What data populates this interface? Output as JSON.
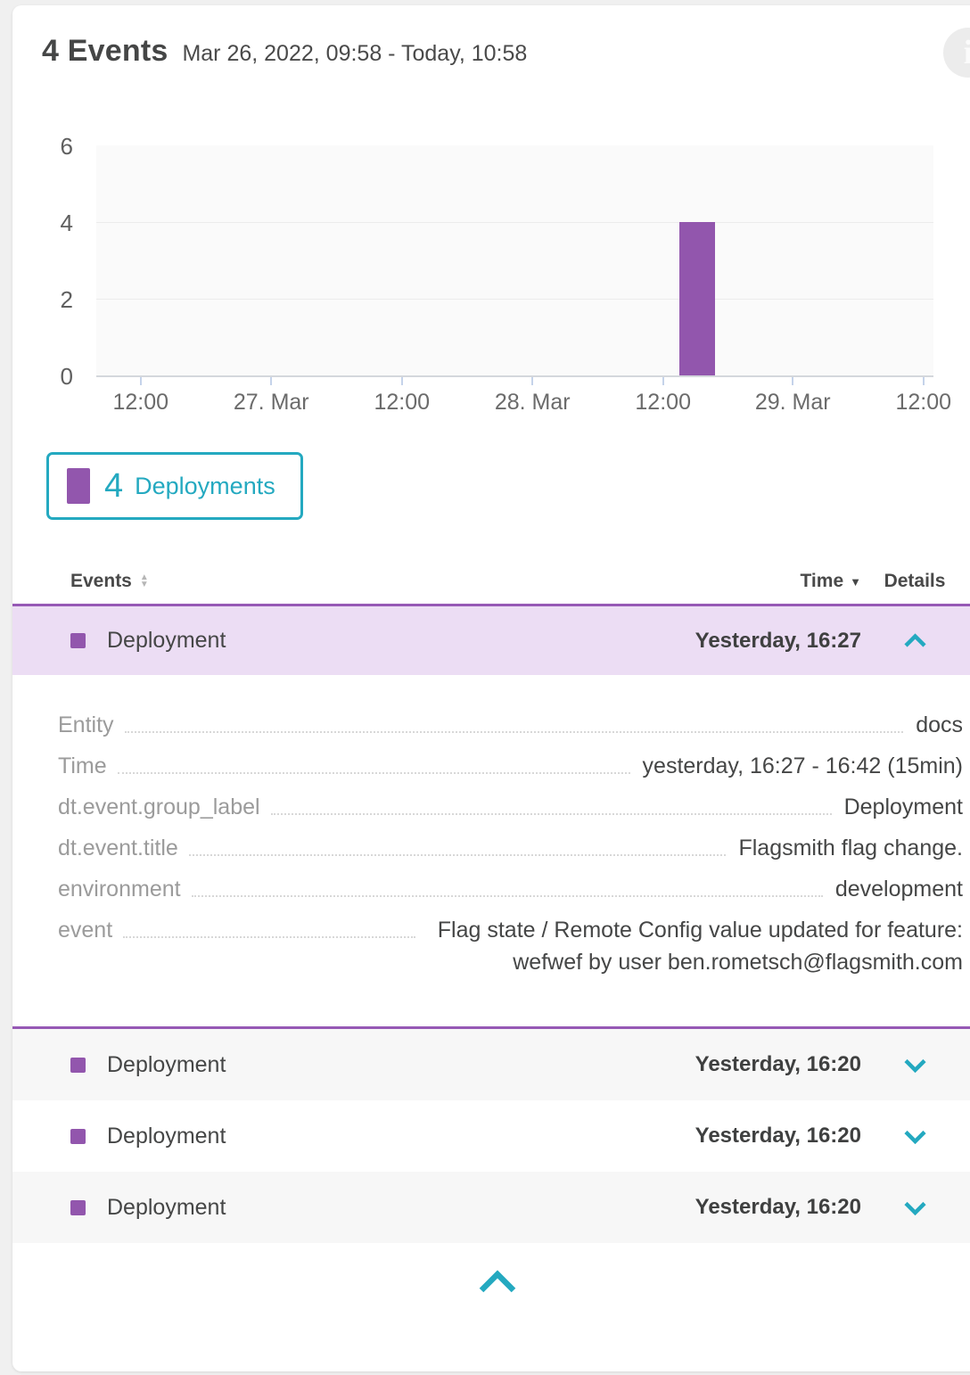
{
  "colors": {
    "accent_teal": "#24a9c0",
    "event_purple": "#9256ad",
    "expanded_row_bg": "#ecddf4",
    "alt_row_bg": "#f7f7f7",
    "page_bg": "#f0f0f0",
    "text_dark": "#454646",
    "label_gray": "#9b9b9b"
  },
  "header": {
    "title": "4 Events",
    "date_range": "Mar 26, 2022, 09:58 - Today, 10:58"
  },
  "icons": {
    "info_glyph": "i",
    "sort_up_glyph": "▲",
    "sort_down_glyph": "▼",
    "time_sort_glyph": "▼"
  },
  "chart_data": {
    "type": "bar",
    "title": "",
    "xlabel": "",
    "ylabel": "",
    "grid": true,
    "y_axis": {
      "range": [
        0,
        6
      ],
      "ticks": [
        6,
        4,
        2,
        0
      ],
      "tick_labels": [
        "6",
        "4",
        "2",
        "0"
      ]
    },
    "x_axis": {
      "tick_labels": [
        "12:00",
        "27. Mar",
        "12:00",
        "28. Mar",
        "12:00",
        "29. Mar",
        "12:00"
      ]
    },
    "series": [
      {
        "name": "Deployments",
        "color": "#9256ad",
        "data": [
          {
            "x_context": "28. Mar, shortly after 12:00 (between 12:00 and 29. Mar)",
            "x_frac": 0.696,
            "y": 4
          }
        ]
      }
    ],
    "legend": {
      "position": "below-left",
      "entries": [
        {
          "label": "Deployments",
          "count": 4,
          "color": "#9256ad"
        }
      ]
    }
  },
  "legend": {
    "count": "4",
    "label": "Deployments"
  },
  "table": {
    "headers": {
      "events": "Events",
      "time": "Time",
      "details": "Details"
    },
    "rows": [
      {
        "event": "Deployment",
        "time": "Yesterday, 16:27",
        "state": "expanded",
        "details": [
          {
            "label": "Entity",
            "value": "docs"
          },
          {
            "label": "Time",
            "value": "yesterday, 16:27 - 16:42 (15min)"
          },
          {
            "label": "dt.event.group_label",
            "value": "Deployment"
          },
          {
            "label": "dt.event.title",
            "value": "Flagsmith flag change."
          },
          {
            "label": "environment",
            "value": "development"
          },
          {
            "label": "event",
            "value": "Flag state / Remote Config value updated for feature: wefwef by user ben.rometsch@flagsmith.com"
          }
        ]
      },
      {
        "event": "Deployment",
        "time": "Yesterday, 16:20",
        "state": "collapsed"
      },
      {
        "event": "Deployment",
        "time": "Yesterday, 16:20",
        "state": "collapsed"
      },
      {
        "event": "Deployment",
        "time": "Yesterday, 16:20",
        "state": "collapsed"
      }
    ]
  }
}
